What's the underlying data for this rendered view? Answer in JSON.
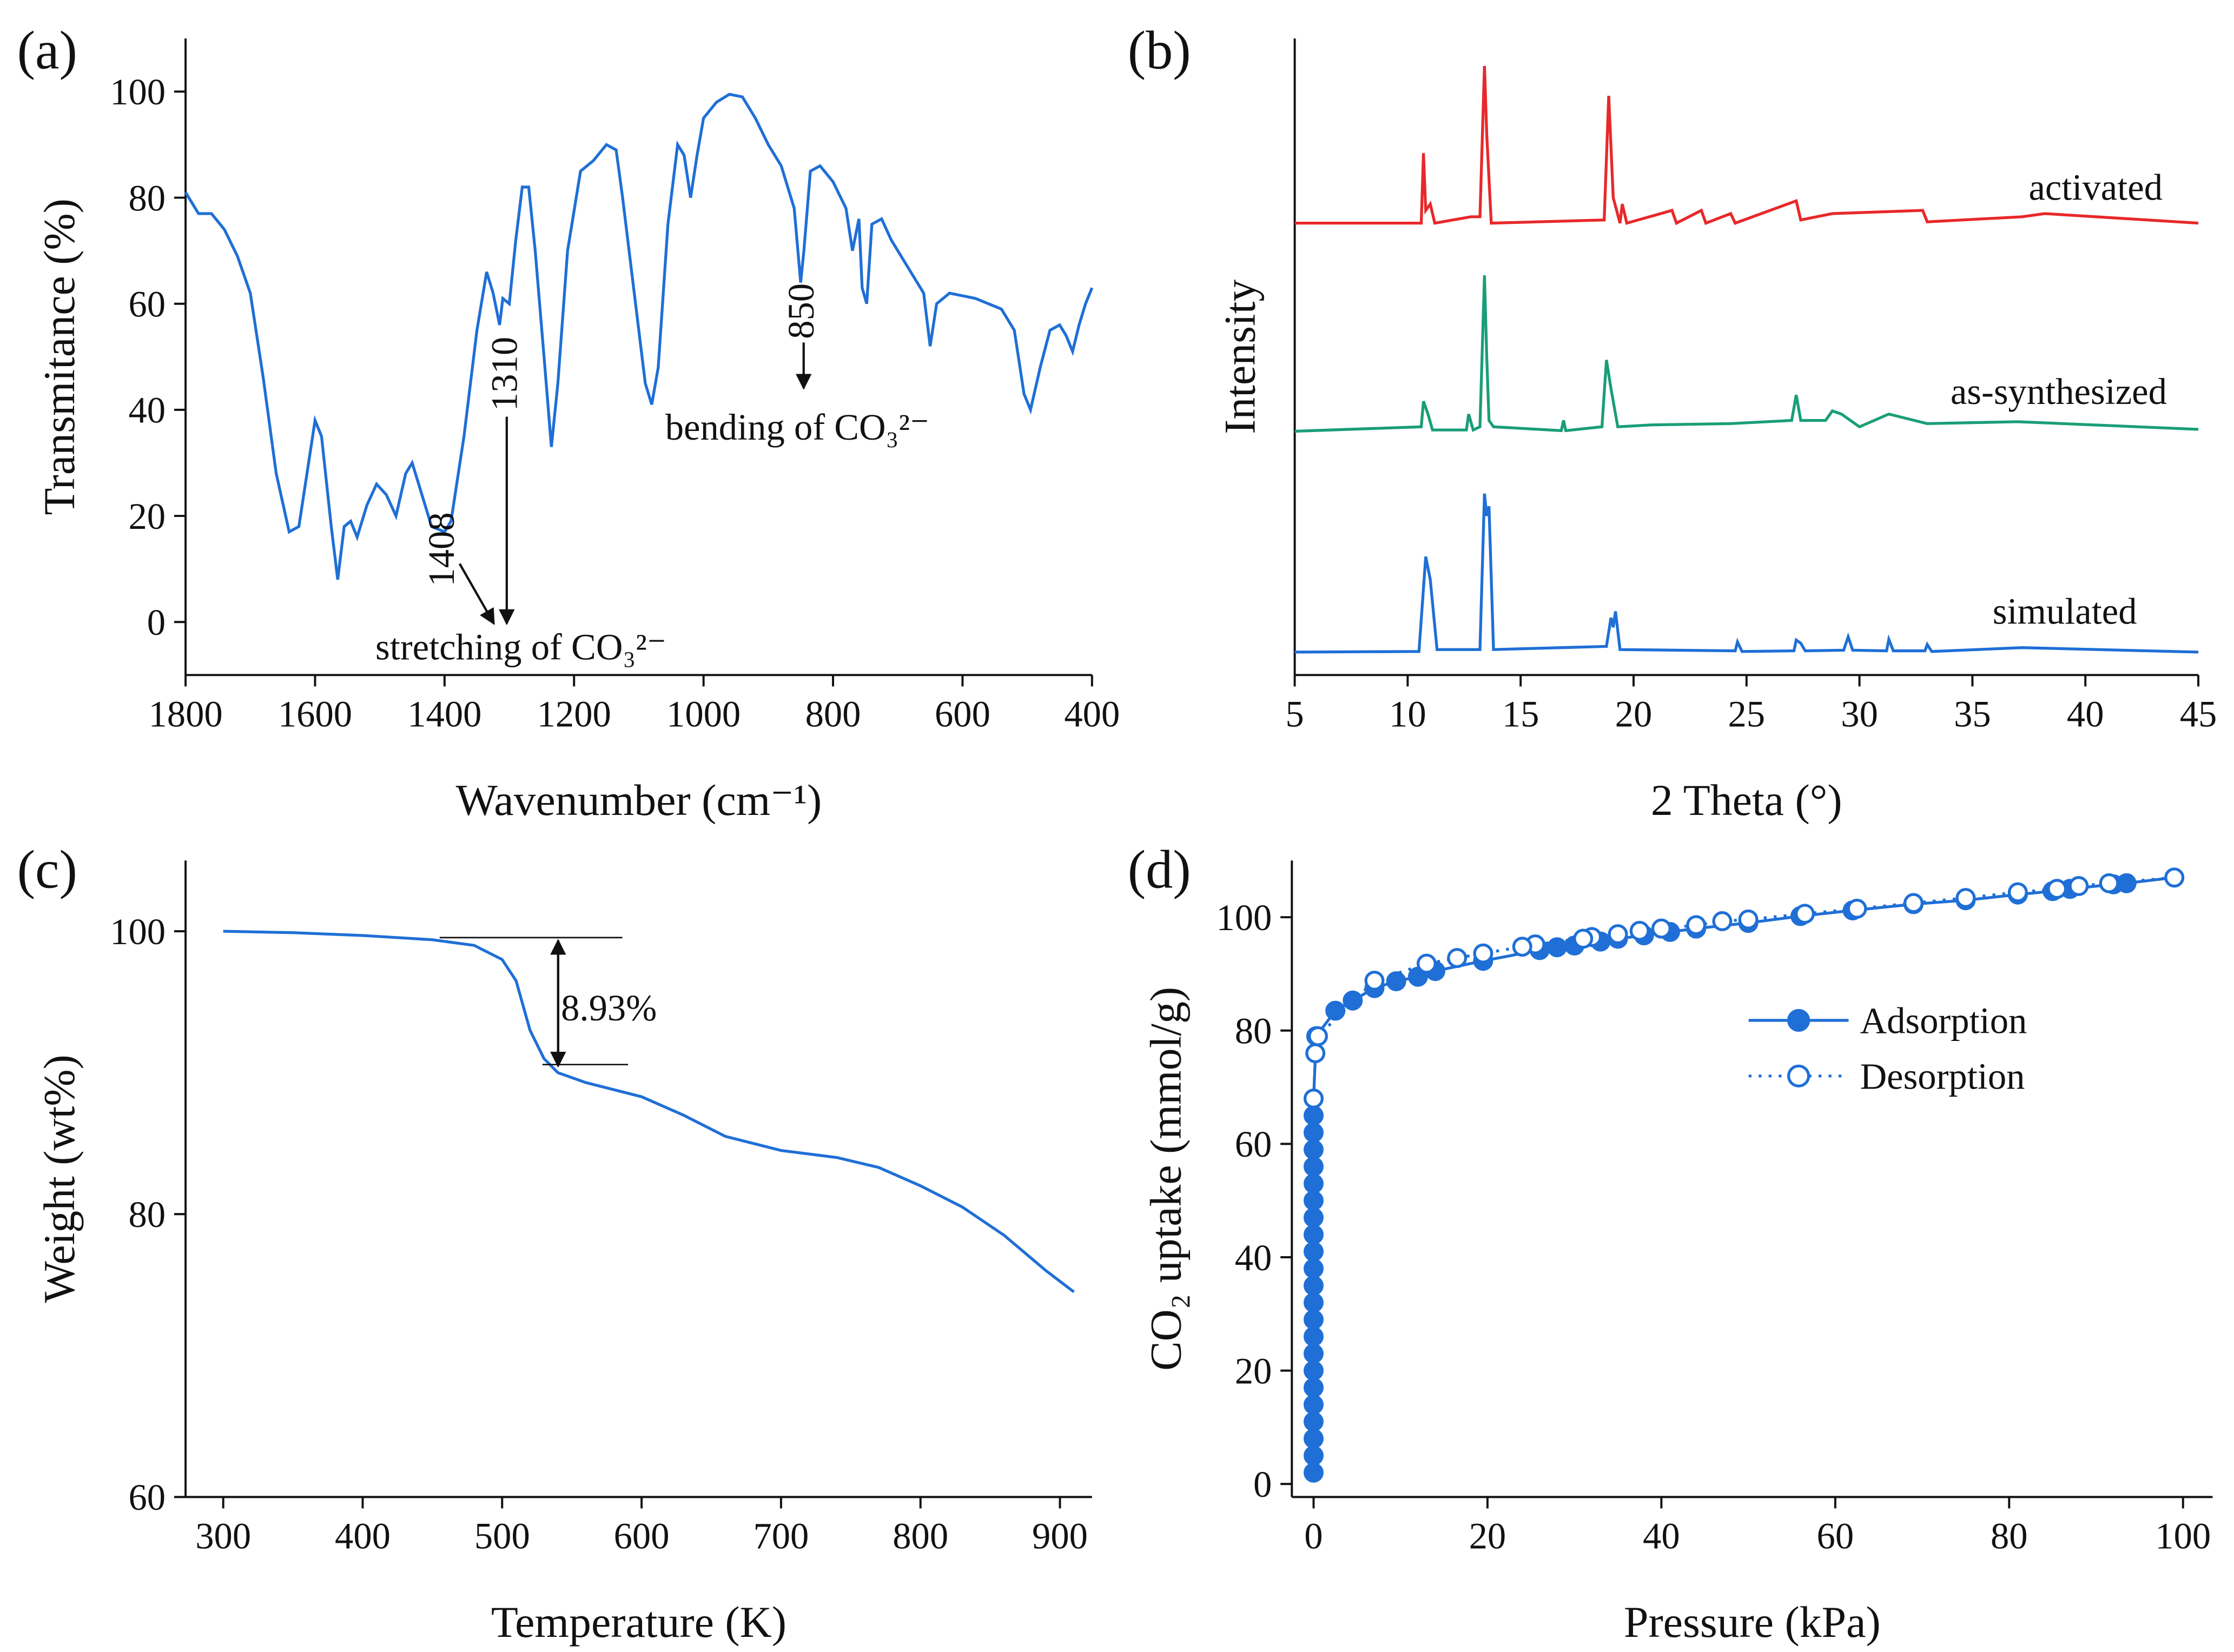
{
  "chart_data": [
    {
      "type": "line",
      "panel": "(a)",
      "xlabel": "Wavenumber (cm⁻¹)",
      "ylabel": "Transmitance (%)",
      "xlim": [
        1800,
        400
      ],
      "ylim": [
        -10,
        110
      ],
      "xticks": [
        1800,
        1600,
        1400,
        1200,
        1000,
        800,
        600,
        400
      ],
      "yticks": [
        0,
        20,
        40,
        60,
        80,
        100
      ],
      "annotations": [
        "1408",
        "1310",
        "850",
        "stretching of CO₃²⁻",
        "bending of CO₃²⁻"
      ],
      "series": [
        {
          "color": "#1f6fd6",
          "x": [
            1800,
            1780,
            1760,
            1740,
            1720,
            1700,
            1680,
            1660,
            1640,
            1625,
            1610,
            1600,
            1590,
            1575,
            1565,
            1555,
            1545,
            1535,
            1520,
            1505,
            1490,
            1475,
            1460,
            1450,
            1440,
            1420,
            1400,
            1390,
            1370,
            1350,
            1335,
            1325,
            1315,
            1310,
            1300,
            1290,
            1280,
            1270,
            1260,
            1245,
            1235,
            1225,
            1210,
            1190,
            1170,
            1150,
            1135,
            1125,
            1110,
            1090,
            1080,
            1070,
            1055,
            1040,
            1030,
            1020,
            1010,
            1000,
            980,
            960,
            940,
            920,
            900,
            880,
            860,
            850,
            845,
            835,
            820,
            800,
            780,
            770,
            760,
            755,
            748,
            740,
            725,
            710,
            700,
            680,
            660,
            650,
            640,
            620,
            580,
            540,
            520,
            505,
            495,
            480,
            465,
            450,
            440,
            430,
            420,
            410,
            400
          ],
          "values": [
            81,
            77,
            77,
            74,
            69,
            62,
            46,
            28,
            17,
            18,
            30,
            38,
            35,
            18,
            8,
            18,
            19,
            16,
            22,
            26,
            24,
            20,
            28,
            30,
            26,
            18,
            17,
            19,
            35,
            55,
            66,
            62,
            56,
            61,
            60,
            72,
            82,
            82,
            70,
            48,
            33,
            45,
            70,
            85,
            87,
            90,
            89,
            80,
            65,
            45,
            41,
            48,
            75,
            90,
            88,
            80,
            88,
            95,
            98,
            99.5,
            99,
            95,
            90,
            86,
            78,
            64,
            70,
            85,
            86,
            83,
            78,
            70,
            76,
            63,
            60,
            75,
            76,
            72,
            70,
            66,
            62,
            52,
            60,
            62,
            61,
            59,
            55,
            43,
            40,
            48,
            55,
            56,
            54,
            51,
            56,
            60,
            63
          ]
        }
      ]
    },
    {
      "type": "line",
      "panel": "(b)",
      "xlabel": "2 Theta (°)",
      "ylabel": "Intensity",
      "xlim": [
        5,
        45
      ],
      "ylim": [
        0,
        100
      ],
      "xticks": [
        5,
        10,
        15,
        20,
        25,
        30,
        35,
        40,
        45
      ],
      "series": [
        {
          "name": "activated",
          "color": "#e8282a",
          "x": [
            5,
            10.6,
            10.7,
            10.8,
            11.0,
            11.2,
            12.8,
            13.2,
            13.4,
            13.5,
            13.7,
            18.7,
            18.9,
            19.1,
            19.4,
            19.5,
            19.7,
            21.7,
            21.9,
            23,
            23.2,
            24.3,
            24.5,
            27.2,
            27.4,
            28.8,
            32.8,
            33,
            37.2,
            38.2,
            45
          ],
          "values": [
            71,
            71,
            82,
            73,
            74,
            71,
            72,
            72,
            95.7,
            85,
            71,
            71.5,
            91,
            75,
            71,
            74,
            71,
            73,
            71,
            73,
            71,
            72.5,
            71,
            74.5,
            71.5,
            72.5,
            73,
            71.2,
            72,
            72.5,
            71
          ]
        },
        {
          "name": "as-synthesized",
          "color": "#1a9e77",
          "x": [
            5,
            10.6,
            10.7,
            10.9,
            11.1,
            12.6,
            12.7,
            12.9,
            13.2,
            13.4,
            13.5,
            13.6,
            13.8,
            16.8,
            16.9,
            17.0,
            18.6,
            18.8,
            19.0,
            19.3,
            20.8,
            24.3,
            27.0,
            27.2,
            27.4,
            28.5,
            28.8,
            29.2,
            30,
            31.3,
            33,
            37,
            45
          ],
          "values": [
            38.3,
            39,
            43,
            41,
            38.5,
            38.5,
            41,
            38.5,
            39,
            62.8,
            50,
            40,
            39,
            38.4,
            40,
            38.4,
            39,
            49.5,
            45,
            39,
            39.3,
            39.5,
            40,
            44,
            40,
            40,
            41.5,
            41,
            39,
            41,
            39.5,
            39.8,
            38.6
          ]
        },
        {
          "name": "simulated",
          "color": "#1f6fd6",
          "x": [
            5,
            10.5,
            10.8,
            11.0,
            11.3,
            13.2,
            13.4,
            13.5,
            13.6,
            13.8,
            18.8,
            19.0,
            19.1,
            19.2,
            19.4,
            24.5,
            24.6,
            24.8,
            27.1,
            27.2,
            27.4,
            27.6,
            29.3,
            29.5,
            29.7,
            31.2,
            31.3,
            31.5,
            32.9,
            33.0,
            33.2,
            37.2,
            45
          ],
          "values": [
            3.6,
            3.7,
            18.6,
            15,
            4,
            4,
            28.5,
            25,
            26.5,
            4,
            4.5,
            9,
            7.5,
            10,
            4,
            3.8,
            5.2,
            3.7,
            3.8,
            5.5,
            5,
            3.8,
            3.9,
            6,
            3.9,
            3.8,
            5.6,
            3.8,
            3.8,
            4.8,
            3.7,
            4.3,
            3.6
          ]
        }
      ]
    },
    {
      "type": "line",
      "panel": "(c)",
      "xlabel": "Temperature (K)",
      "ylabel": "Weight (wt%)",
      "xlim": [
        273,
        923
      ],
      "ylim": [
        60,
        105
      ],
      "xticks": [
        300,
        400,
        500,
        600,
        700,
        800,
        900
      ],
      "yticks": [
        60,
        80,
        100
      ],
      "annotations": [
        "8.93%"
      ],
      "series": [
        {
          "color": "#1f6fd6",
          "x": [
            300,
            350,
            400,
            450,
            480,
            500,
            510,
            520,
            530,
            540,
            560,
            600,
            630,
            660,
            700,
            740,
            770,
            800,
            830,
            860,
            890,
            910
          ],
          "values": [
            100,
            99.9,
            99.7,
            99.4,
            99,
            98,
            96.5,
            93,
            91,
            90,
            89.3,
            88.3,
            87,
            85.5,
            84.5,
            84,
            83.3,
            82,
            80.5,
            78.5,
            76,
            74.5
          ]
        }
      ]
    },
    {
      "type": "line",
      "panel": "(d)",
      "xlabel": "Pressure (kPa)",
      "ylabel": "CO₂ uptake (mmol/g)",
      "xlim": [
        -2.5,
        103.4
      ],
      "ylim": [
        -2.3,
        110
      ],
      "xticks": [
        0,
        20,
        40,
        60,
        80,
        100
      ],
      "yticks": [
        0,
        20,
        40,
        60,
        80,
        100
      ],
      "legend": "right",
      "series": [
        {
          "name": "Adsorption",
          "color": "#1f6fd6",
          "marker": "filled",
          "linestyle": "solid",
          "x": [
            0,
            0,
            0,
            0,
            0,
            0,
            0,
            0,
            0,
            0,
            0,
            0,
            0,
            0,
            0,
            0,
            0,
            0,
            0,
            0,
            0,
            0,
            0,
            0.3,
            2.5,
            4.5,
            7,
            9.5,
            12,
            14,
            19.5,
            26,
            28,
            30,
            33,
            35,
            38,
            41,
            44,
            50,
            56,
            62,
            69,
            75,
            81,
            85,
            87,
            92,
            93.5,
            99
          ],
          "values": [
            2,
            5,
            8,
            11,
            14,
            17,
            20,
            23,
            26,
            29,
            32,
            35,
            38,
            41,
            44,
            47,
            50,
            53,
            56,
            59,
            62,
            65,
            68,
            79,
            83.5,
            85.3,
            87.5,
            88.7,
            89.5,
            90.5,
            92.3,
            94.2,
            94.7,
            95,
            95.7,
            96.2,
            96.8,
            97.4,
            98,
            99,
            100.2,
            101.2,
            102.3,
            103,
            104,
            104.6,
            105,
            105.8,
            106,
            107
          ]
        },
        {
          "name": "Desorption",
          "color": "#1f6fd6",
          "marker": "open",
          "linestyle": "dotted",
          "x": [
            99,
            91.5,
            88,
            85.5,
            81,
            75,
            69,
            62.5,
            56.5,
            50,
            47,
            44,
            40,
            37.5,
            35,
            32,
            31,
            25.5,
            24,
            19.5,
            16.5,
            13,
            7,
            0.5,
            0.2,
            0
          ],
          "values": [
            107,
            106,
            105.5,
            105,
            104.4,
            103.4,
            102.5,
            101.5,
            100.6,
            99.6,
            99.3,
            98.6,
            98,
            97.6,
            97,
            96.5,
            96.2,
            95.2,
            94.8,
            93.6,
            92.8,
            91.8,
            88.8,
            79,
            76,
            68
          ]
        }
      ]
    }
  ]
}
